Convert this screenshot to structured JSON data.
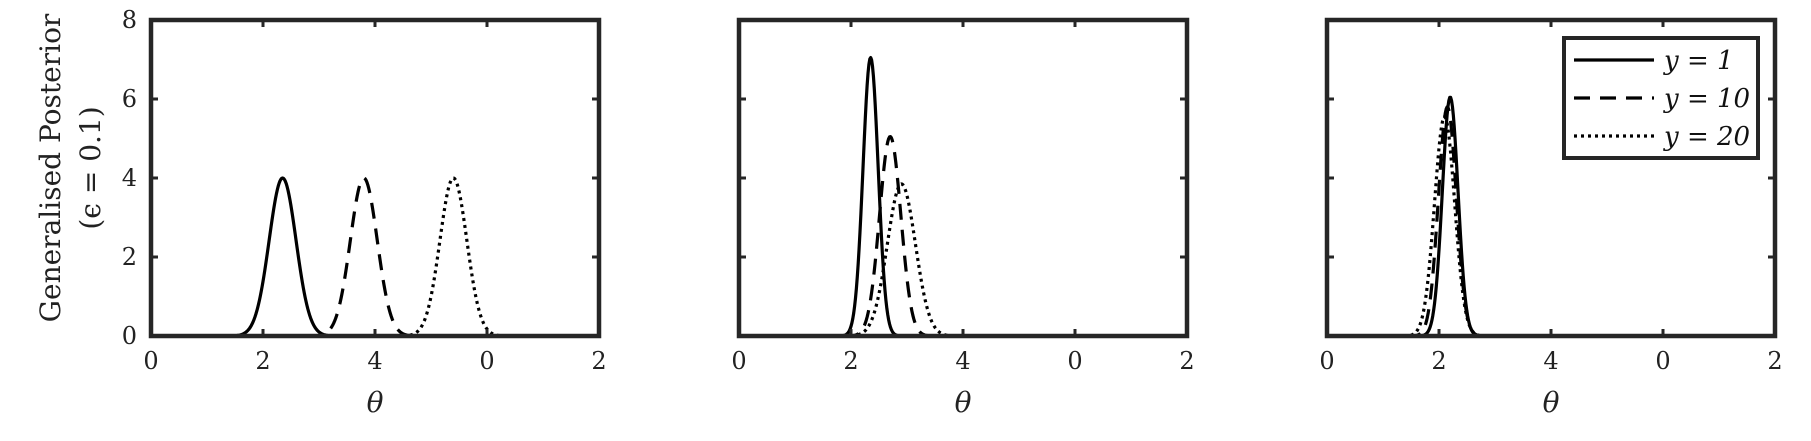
{
  "figure": {
    "ylabel_line1": "Generalised Posterior",
    "ylabel_line2": "(ϵ = 0.1)"
  },
  "legend": {
    "entries": [
      {
        "label": "y = 1",
        "dash": "solid"
      },
      {
        "label": "y = 10",
        "dash": "dashed"
      },
      {
        "label": "y = 20",
        "dash": "dotted"
      }
    ]
  },
  "chart_data": [
    {
      "type": "line",
      "title": "",
      "xlabel": "θ",
      "ylabel": "Generalised Posterior (ϵ = 0.1)",
      "xlim": [
        0,
        8
      ],
      "ylim": [
        0,
        8
      ],
      "xtick_labels": [
        "0",
        "2",
        "4",
        "0",
        "2"
      ],
      "ytick_labels": [
        "0",
        "2",
        "4",
        "6",
        "8"
      ],
      "series": [
        {
          "name": "y = 1",
          "style": "solid",
          "peaks": [
            {
              "mu": 2.35,
              "height": 4.0,
              "sigma": 0.24
            }
          ]
        },
        {
          "name": "y = 10",
          "style": "dashed",
          "peaks": [
            {
              "mu": 3.8,
              "height": 4.0,
              "sigma": 0.24
            }
          ]
        },
        {
          "name": "y = 20",
          "style": "dotted",
          "peaks": [
            {
              "mu": 5.4,
              "height": 4.0,
              "sigma": 0.24
            }
          ]
        }
      ]
    },
    {
      "type": "line",
      "title": "",
      "xlabel": "θ",
      "ylabel": "",
      "xlim": [
        0,
        8
      ],
      "ylim": [
        0,
        8
      ],
      "xtick_labels": [
        "0",
        "2",
        "4",
        "0",
        "2"
      ],
      "ytick_labels": [],
      "series": [
        {
          "name": "y = 1",
          "style": "solid",
          "peaks": [
            {
              "mu": 2.35,
              "height": 7.05,
              "sigma": 0.135
            }
          ]
        },
        {
          "name": "y = 10",
          "style": "dashed",
          "peaks": [
            {
              "mu": 2.7,
              "height": 5.05,
              "sigma": 0.19
            }
          ]
        },
        {
          "name": "y = 20",
          "style": "dotted",
          "peaks": [
            {
              "mu": 2.9,
              "height": 3.85,
              "sigma": 0.25
            }
          ]
        }
      ]
    },
    {
      "type": "line",
      "title": "",
      "xlabel": "θ",
      "ylabel": "",
      "xlim": [
        0,
        8
      ],
      "ylim": [
        0,
        8
      ],
      "xtick_labels": [
        "0",
        "2",
        "4",
        "0",
        "2"
      ],
      "ytick_labels": [],
      "legend_position": "top-right",
      "series": [
        {
          "name": "y = 1",
          "style": "solid",
          "peaks": [
            {
              "mu": 2.2,
              "height": 6.05,
              "sigma": 0.14
            }
          ]
        },
        {
          "name": "y = 10",
          "style": "dashed",
          "peaks": [
            {
              "mu": 2.15,
              "height": 5.8,
              "sigma": 0.16
            }
          ]
        },
        {
          "name": "y = 20",
          "style": "dotted",
          "peaks": [
            {
              "mu": 2.1,
              "height": 5.55,
              "sigma": 0.18
            }
          ]
        }
      ]
    }
  ]
}
